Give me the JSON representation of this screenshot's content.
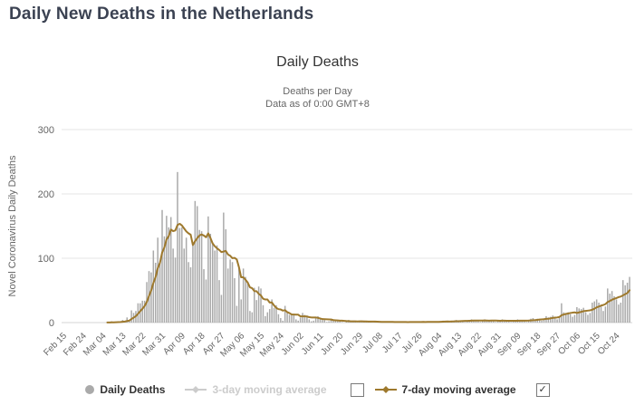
{
  "page": {
    "title": "Daily New Deaths in the Netherlands"
  },
  "chart": {
    "title": "Daily Deaths",
    "subtitle_line1": "Deaths per Day",
    "subtitle_line2": "Data as of 0:00 GMT+8"
  },
  "legend": {
    "daily_deaths_label": "Daily Deaths",
    "ma3_label": "3-day moving average",
    "ma7_label": "7-day moving average",
    "ma3_checked": false,
    "ma7_checked": true,
    "checkmark": "✓"
  },
  "colors": {
    "bars": "#aaaaaa",
    "ma7_line": "#9e792d",
    "disabled_legend": "#cccccc",
    "gridline": "#e6e6e6",
    "axis_line": "#d6d6d6",
    "axis_text": "#666666",
    "page_title_text": "#3b4252",
    "chart_title_text": "#333333"
  },
  "chart_data": {
    "type": "bar",
    "title": "Daily Deaths",
    "subtitle": [
      "Deaths per Day",
      "Data as of 0:00 GMT+8"
    ],
    "xlabel": "",
    "ylabel": "Novel Coronavirus Daily Deaths",
    "ylim": [
      0,
      300
    ],
    "y_ticks": [
      0,
      100,
      200,
      300
    ],
    "grid": true,
    "legend_position": "bottom",
    "start_date": "Feb 15",
    "end_date": "Oct 30",
    "x_tick_interval_days": 9,
    "x_tick_labels": [
      "Feb 15",
      "Feb 24",
      "Mar 04",
      "Mar 13",
      "Mar 22",
      "Mar 31",
      "Apr 09",
      "Apr 18",
      "Apr 27",
      "May 06",
      "May 15",
      "May 24",
      "Jun 02",
      "Jun 11",
      "Jun 20",
      "Jun 29",
      "Jul 08",
      "Jul 17",
      "Jul 26",
      "Aug 04",
      "Aug 13",
      "Aug 22",
      "Aug 31",
      "Sep 09",
      "Sep 18",
      "Sep 27",
      "Oct 06",
      "Oct 15",
      "Oct 24"
    ],
    "series": [
      {
        "name": "Daily Deaths",
        "type": "bar",
        "visible": true,
        "values": [
          0,
          0,
          0,
          0,
          0,
          0,
          0,
          0,
          0,
          0,
          0,
          0,
          0,
          0,
          0,
          0,
          0,
          0,
          0,
          0,
          1,
          0,
          2,
          0,
          1,
          1,
          1,
          4,
          2,
          8,
          4,
          19,
          15,
          18,
          30,
          30,
          34,
          34,
          63,
          80,
          78,
          112,
          93,
          132,
          93,
          175,
          134,
          166,
          148,
          164,
          115,
          101,
          234,
          147,
          148,
          115,
          132,
          94,
          86,
          122,
          189,
          181,
          144,
          142,
          83,
          67,
          165,
          138,
          123,
          112,
          120,
          66,
          43,
          171,
          145,
          84,
          98,
          94,
          69,
          26,
          86,
          36,
          84,
          71,
          63,
          18,
          16,
          54,
          35,
          56,
          53,
          27,
          10,
          16,
          21,
          36,
          23,
          27,
          13,
          7,
          3,
          26,
          15,
          12,
          13,
          12,
          5,
          3,
          8,
          15,
          12,
          11,
          5,
          2,
          3,
          8,
          10,
          6,
          4,
          4,
          1,
          2,
          6,
          4,
          4,
          2,
          2,
          1,
          0,
          3,
          4,
          2,
          2,
          1,
          0,
          1,
          3,
          3,
          2,
          1,
          1,
          0,
          1,
          2,
          2,
          1,
          1,
          0,
          0,
          1,
          2,
          1,
          1,
          1,
          0,
          0,
          1,
          1,
          2,
          1,
          1,
          0,
          0,
          1,
          2,
          1,
          2,
          1,
          0,
          1,
          1,
          2,
          2,
          3,
          2,
          1,
          0,
          2,
          3,
          4,
          3,
          3,
          2,
          1,
          3,
          4,
          5,
          4,
          3,
          2,
          1,
          3,
          5,
          4,
          3,
          4,
          2,
          1,
          2,
          4,
          5,
          3,
          3,
          2,
          1,
          2,
          4,
          5,
          4,
          3,
          2,
          1,
          3,
          6,
          7,
          5,
          6,
          5,
          3,
          5,
          10,
          8,
          9,
          11,
          8,
          5,
          9,
          30,
          16,
          15,
          16,
          13,
          9,
          12,
          24,
          22,
          21,
          23,
          16,
          12,
          15,
          31,
          33,
          36,
          31,
          27,
          18,
          25,
          53,
          45,
          49,
          41,
          36,
          28,
          31,
          66,
          58,
          62,
          71
        ]
      },
      {
        "name": "3-day moving average",
        "type": "line",
        "visible": false
      },
      {
        "name": "7-day moving average",
        "type": "line",
        "visible": true,
        "derived": "trailing 7-day mean of Daily Deaths values"
      }
    ]
  }
}
